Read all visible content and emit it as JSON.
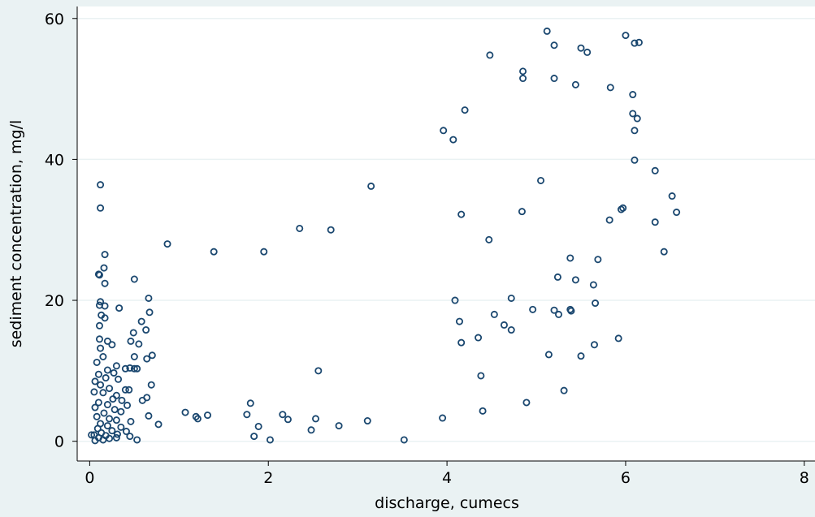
{
  "chart_data": {
    "type": "scatter",
    "x_label": "discharge, cumecs",
    "y_label": "sediment concentration, mg/l",
    "color": "#1a476f",
    "grid": true,
    "xlim": [
      -0.14,
      8.12
    ],
    "xticks": [
      0,
      2,
      4,
      6,
      8
    ],
    "ylim": [
      -2.8,
      61.7
    ],
    "yticks": [
      0,
      20,
      40,
      60
    ],
    "x": [
      5.12,
      6.0,
      6.1,
      6.15,
      5.2,
      5.5,
      5.57,
      4.48,
      4.85,
      4.85,
      5.2,
      5.44,
      5.83,
      6.08,
      4.2,
      6.08,
      6.13,
      6.1,
      3.96,
      4.07,
      6.1,
      6.33,
      5.05,
      3.15,
      6.52,
      5.97,
      5.95,
      4.84,
      6.57,
      4.16,
      5.82,
      6.33,
      2.35,
      2.7,
      4.47,
      0.87,
      1.39,
      1.95,
      6.43,
      5.38,
      5.69,
      5.24,
      5.44,
      5.64,
      4.72,
      4.09,
      5.66,
      4.96,
      5.2,
      5.38,
      5.39,
      5.25,
      4.53,
      4.14,
      4.64,
      4.72,
      4.35,
      5.92,
      4.16,
      5.65,
      5.14,
      5.5,
      2.56,
      4.38,
      5.31,
      4.89,
      4.4,
      3.95,
      3.11,
      2.16,
      2.22,
      2.53,
      2.48,
      2.79,
      1.76,
      1.8,
      1.89,
      1.84,
      2.02,
      3.52,
      1.07,
      1.19,
      1.21,
      1.32,
      0.77,
      0.12,
      0.12,
      0.5,
      0.17,
      0.16,
      0.1,
      0.11,
      0.17,
      0.66,
      0.12,
      0.11,
      0.17,
      0.33,
      0.67,
      0.13,
      0.17,
      0.58,
      0.11,
      0.63,
      0.49,
      0.46,
      0.11,
      0.2,
      0.25,
      0.55,
      0.12,
      0.7,
      0.5,
      0.64,
      0.15,
      0.08,
      0.3,
      0.4,
      0.45,
      0.5,
      0.53,
      0.2,
      0.27,
      0.1,
      0.18,
      0.32,
      0.69,
      0.06,
      0.12,
      0.22,
      0.4,
      0.44,
      0.05,
      0.15,
      0.3,
      0.64,
      0.26,
      0.36,
      0.59,
      0.1,
      0.2,
      0.42,
      0.06,
      0.28,
      0.35,
      0.16,
      0.66,
      0.08,
      0.22,
      0.3,
      0.46,
      0.12,
      0.2,
      0.35,
      0.09,
      0.25,
      0.41,
      0.13,
      0.31,
      0.05,
      0.18,
      0.45,
      0.1,
      0.22,
      0.3,
      0.53,
      0.02,
      0.15,
      0.06
    ],
    "values": [
      58.2,
      57.6,
      56.5,
      56.6,
      56.2,
      55.8,
      55.2,
      54.8,
      52.5,
      51.5,
      51.5,
      50.6,
      50.2,
      49.2,
      47,
      46.5,
      45.8,
      44.1,
      44.1,
      42.8,
      39.9,
      38.4,
      37,
      36.2,
      34.8,
      33.1,
      32.9,
      32.6,
      32.5,
      32.2,
      31.4,
      31.1,
      30.2,
      30,
      28.6,
      28,
      26.9,
      26.9,
      26.9,
      26,
      25.8,
      23.3,
      22.9,
      22.2,
      20.3,
      20,
      19.6,
      18.7,
      18.6,
      18.7,
      18.5,
      18,
      18,
      17,
      16.5,
      15.8,
      14.7,
      14.6,
      14,
      13.7,
      12.3,
      12.1,
      10,
      9.3,
      7.2,
      5.5,
      4.3,
      3.3,
      2.9,
      3.8,
      3.1,
      3.2,
      1.6,
      2.2,
      3.8,
      5.4,
      2.1,
      0.7,
      0.2,
      0.2,
      4.1,
      3.5,
      3.2,
      3.7,
      2.4,
      36.4,
      33.1,
      23,
      26.5,
      24.6,
      23.7,
      23.6,
      22.4,
      20.3,
      19.8,
      19.3,
      19.2,
      18.9,
      18.3,
      17.9,
      17.5,
      17,
      16.4,
      15.8,
      15.4,
      14.2,
      14.5,
      14.2,
      13.7,
      13.8,
      13.2,
      12.2,
      12,
      11.7,
      12,
      11.2,
      10.7,
      10.3,
      10.4,
      10.3,
      10.3,
      10.1,
      9.7,
      9.5,
      9,
      8.8,
      8,
      8.5,
      8,
      7.5,
      7.3,
      7.3,
      7,
      6.9,
      6.5,
      6.2,
      6,
      5.8,
      5.8,
      5.5,
      5.2,
      5.1,
      4.8,
      4.5,
      4.2,
      4,
      3.6,
      3.5,
      3.2,
      3,
      2.8,
      2.5,
      2.2,
      2,
      1.8,
      1.5,
      1.4,
      1.2,
      1,
      0.9,
      0.8,
      0.7,
      0.5,
      0.4,
      0.5,
      0.2,
      0.9,
      0.2,
      0.1
    ]
  }
}
